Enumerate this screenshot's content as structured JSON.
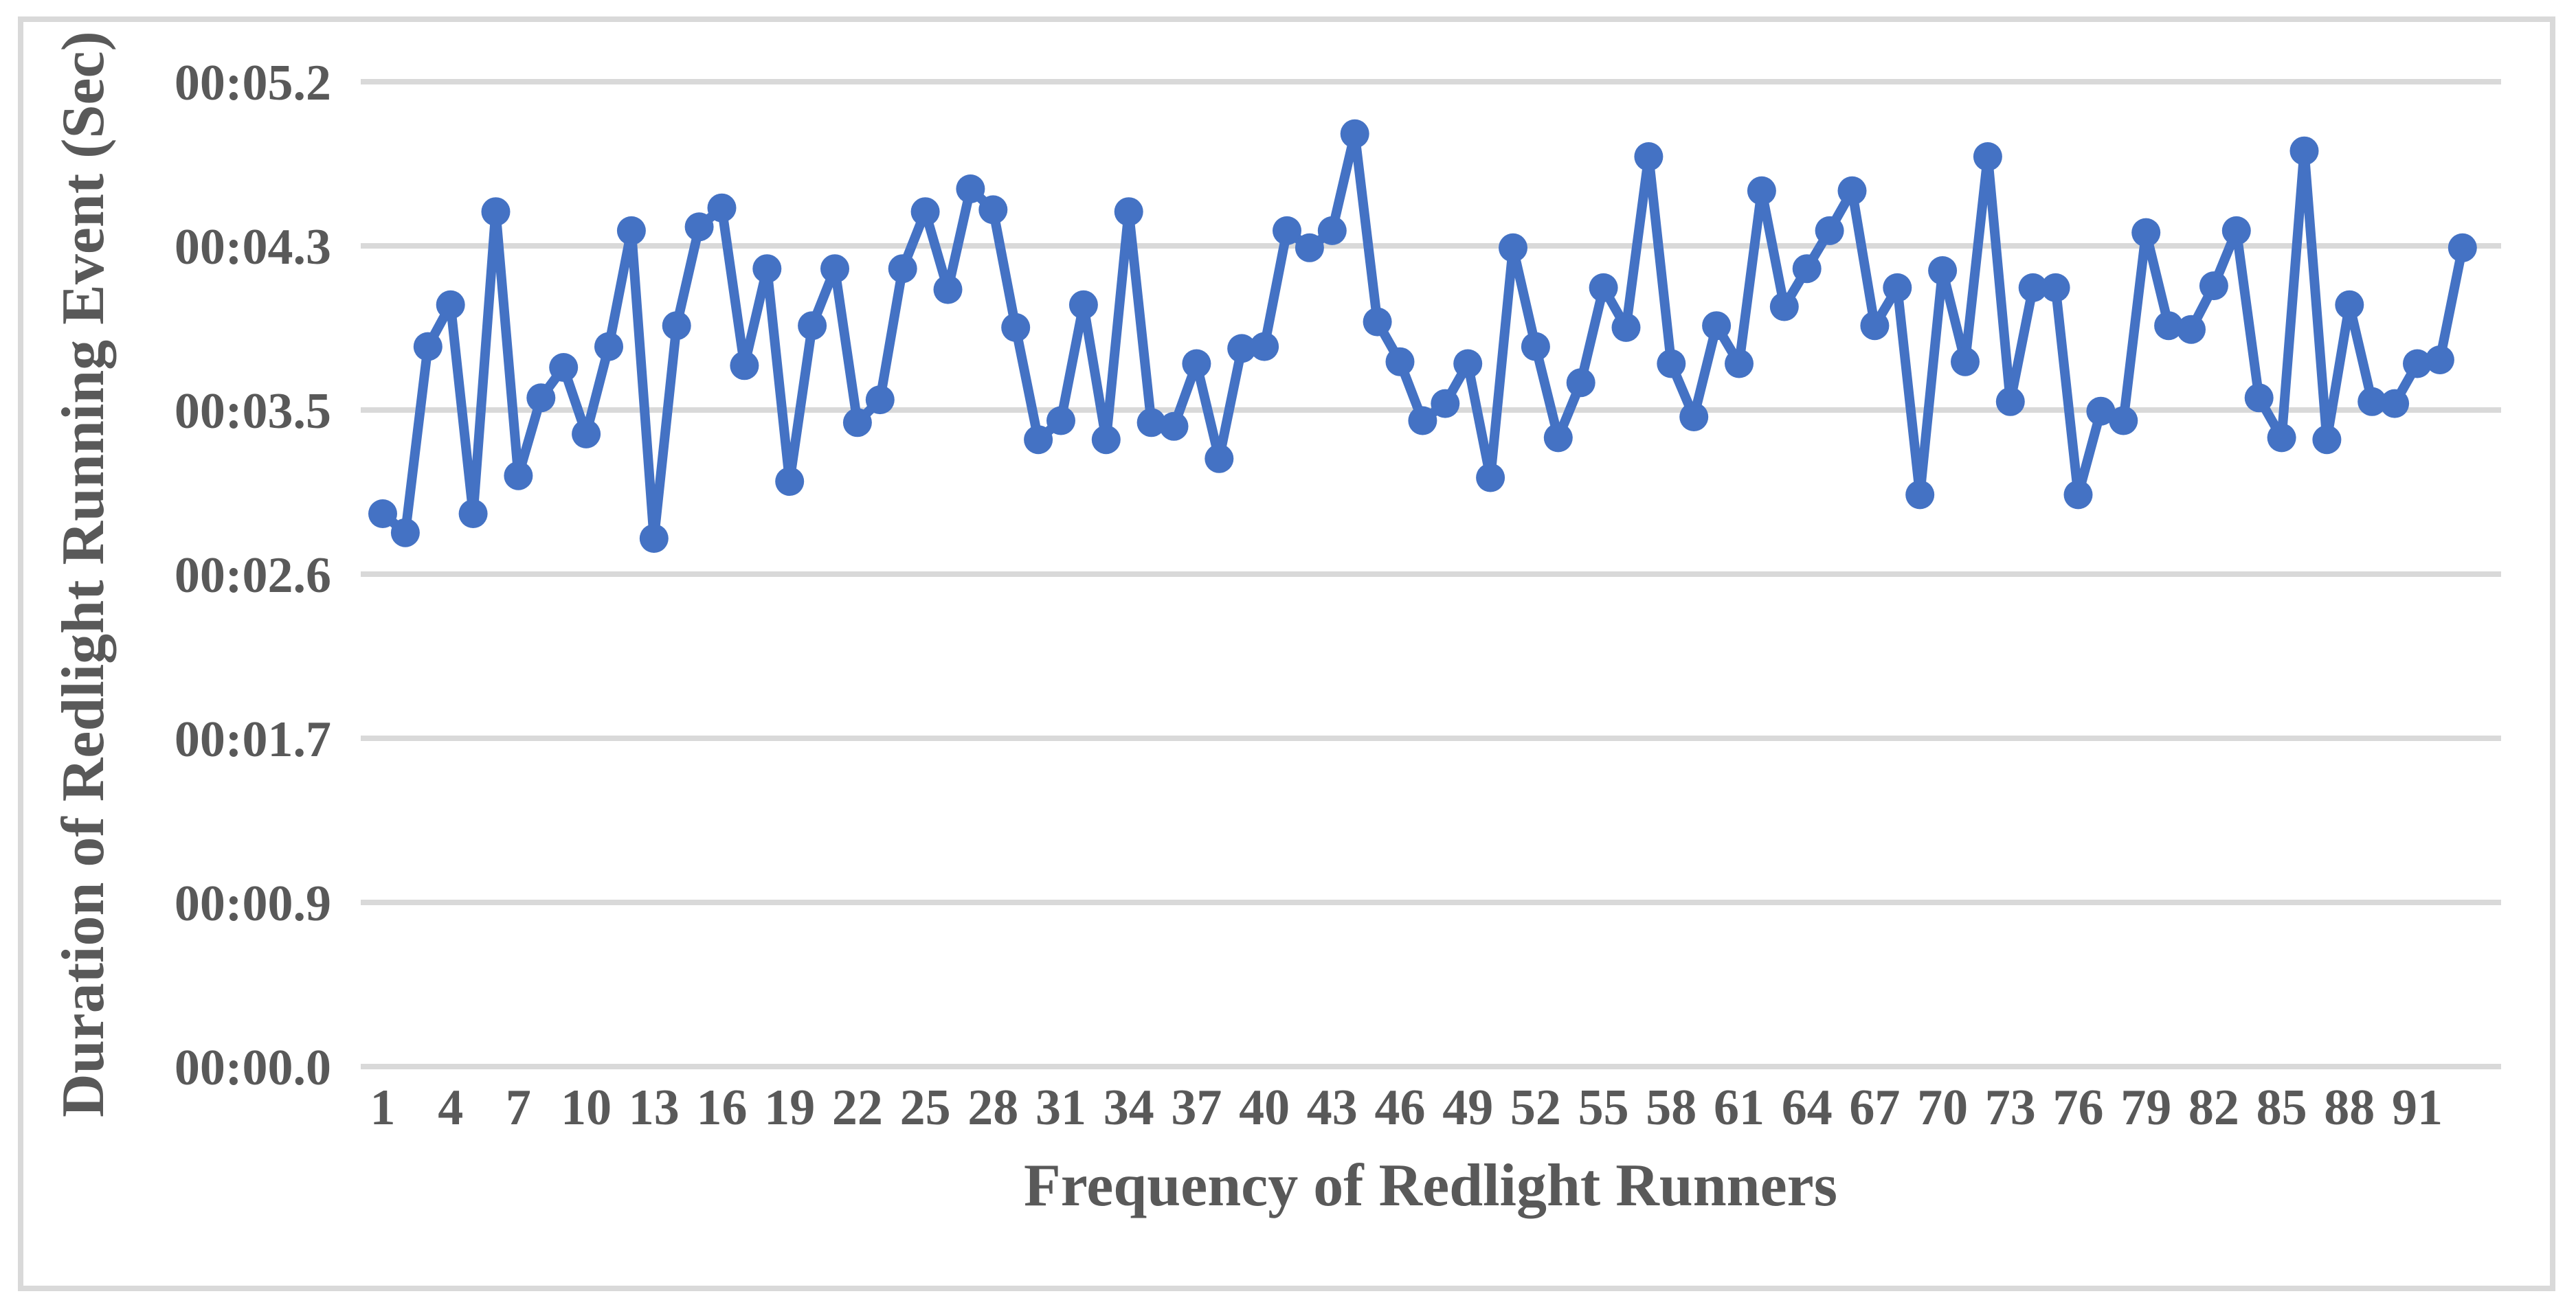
{
  "chart_data": {
    "type": "line",
    "title": "",
    "xlabel": "Frequency of Redlight Runners",
    "ylabel": "Duration of Redlight Running Event (Sec)",
    "series_name": "Duration of redlight running event",
    "x_start": 1,
    "x_count": 93,
    "values_seconds": [
      2.91,
      2.81,
      3.79,
      4.01,
      2.91,
      4.5,
      3.11,
      3.52,
      3.68,
      3.33,
      3.79,
      4.4,
      2.78,
      3.9,
      4.42,
      4.52,
      3.69,
      4.2,
      3.08,
      3.9,
      4.2,
      3.39,
      3.51,
      4.2,
      4.5,
      4.09,
      4.62,
      4.51,
      3.89,
      3.3,
      3.4,
      4.01,
      3.3,
      4.5,
      3.39,
      3.37,
      3.7,
      3.2,
      3.78,
      3.79,
      4.4,
      4.31,
      4.4,
      4.91,
      3.92,
      3.71,
      3.4,
      3.49,
      3.7,
      3.1,
      4.31,
      3.79,
      3.31,
      3.6,
      4.1,
      3.89,
      4.79,
      3.7,
      3.42,
      3.9,
      3.7,
      4.61,
      4.0,
      4.2,
      4.4,
      4.61,
      3.9,
      4.1,
      3.01,
      4.19,
      3.71,
      4.79,
      3.5,
      4.1,
      4.1,
      3.01,
      3.45,
      3.4,
      4.39,
      3.9,
      3.88,
      4.11,
      4.4,
      3.52,
      3.31,
      4.82,
      3.3,
      4.01,
      3.5,
      3.49,
      3.7,
      3.72,
      4.31
    ],
    "y_ticks": [
      {
        "value": 0.0,
        "label": "00:00.0"
      },
      {
        "value": 0.864,
        "label": "00:00.9"
      },
      {
        "value": 1.728,
        "label": "00:01.7"
      },
      {
        "value": 2.592,
        "label": "00:02.6"
      },
      {
        "value": 3.456,
        "label": "00:03.5"
      },
      {
        "value": 4.32,
        "label": "00:04.3"
      },
      {
        "value": 5.184,
        "label": "00:05.2"
      }
    ],
    "x_tick_labels": [
      "1",
      "4",
      "7",
      "10",
      "13",
      "16",
      "19",
      "22",
      "25",
      "28",
      "31",
      "34",
      "37",
      "40",
      "43",
      "46",
      "49",
      "52",
      "55",
      "58",
      "61",
      "64",
      "67",
      "70",
      "73",
      "76",
      "79",
      "82",
      "85",
      "88",
      "91"
    ],
    "x_tick_step": 3,
    "ylim": [
      0,
      5.184
    ],
    "grid": true,
    "legend_position": "none",
    "line_color": "#4472C4",
    "marker_color": "#4472C4",
    "gridline_color": "#D9D9D9",
    "text_color": "#595959",
    "frame_border_color": "#D9D9D9",
    "background_color": "#FFFFFF"
  }
}
